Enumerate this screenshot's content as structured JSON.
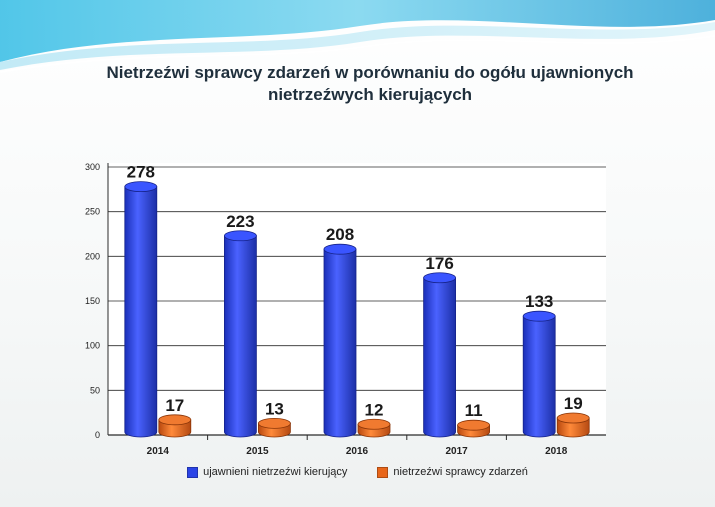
{
  "chart_data": {
    "type": "bar",
    "title": "Nietrzeźwi sprawcy zdarzeń w porównaniu do ogółu ujawnionych nietrzeźwych kierujących",
    "categories": [
      "2014",
      "2015",
      "2016",
      "2017",
      "2018"
    ],
    "series": [
      {
        "name": "ujawnieni nietrzeźwi kierujący",
        "values": [
          278,
          223,
          208,
          176,
          133
        ],
        "color": "#2b44e6",
        "labels": [
          "278",
          "223",
          "208",
          "176",
          "133"
        ]
      },
      {
        "name": "nietrzeźwi sprawcy zdarzeń",
        "values": [
          17,
          13,
          12,
          11,
          19
        ],
        "color": "#e8661a",
        "labels": [
          "17",
          "13",
          "12",
          "11",
          "19"
        ]
      }
    ],
    "ylim": [
      0,
      300
    ],
    "yticks": [
      "0",
      "50",
      "100",
      "150",
      "200",
      "250",
      "300"
    ],
    "grid": true,
    "legend_position": "bottom"
  }
}
